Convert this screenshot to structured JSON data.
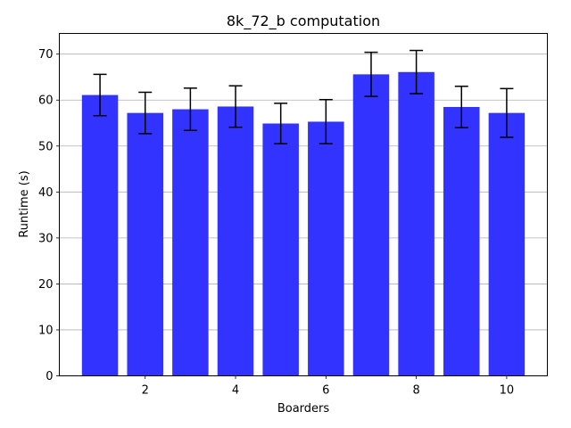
{
  "chart_data": {
    "type": "bar",
    "title": "8k_72_b computation",
    "xlabel": "Boarders",
    "ylabel": "Runtime (s)",
    "x": [
      1,
      2,
      3,
      4,
      5,
      6,
      7,
      8,
      9,
      10
    ],
    "values": [
      61.1,
      57.2,
      58.0,
      58.6,
      54.9,
      55.3,
      65.6,
      66.1,
      58.5,
      57.2
    ],
    "errors": [
      4.5,
      4.5,
      4.6,
      4.5,
      4.4,
      4.8,
      4.8,
      4.7,
      4.5,
      5.3
    ],
    "xticks": [
      2,
      4,
      6,
      8,
      10
    ],
    "yticks": [
      0,
      10,
      20,
      30,
      40,
      50,
      60,
      70
    ],
    "xlim": [
      0.1,
      10.9
    ],
    "ylim": [
      0,
      74.5
    ],
    "bar_color": "#3333ff",
    "error_color": "#000000",
    "grid": "horizontal",
    "legend": "none"
  }
}
